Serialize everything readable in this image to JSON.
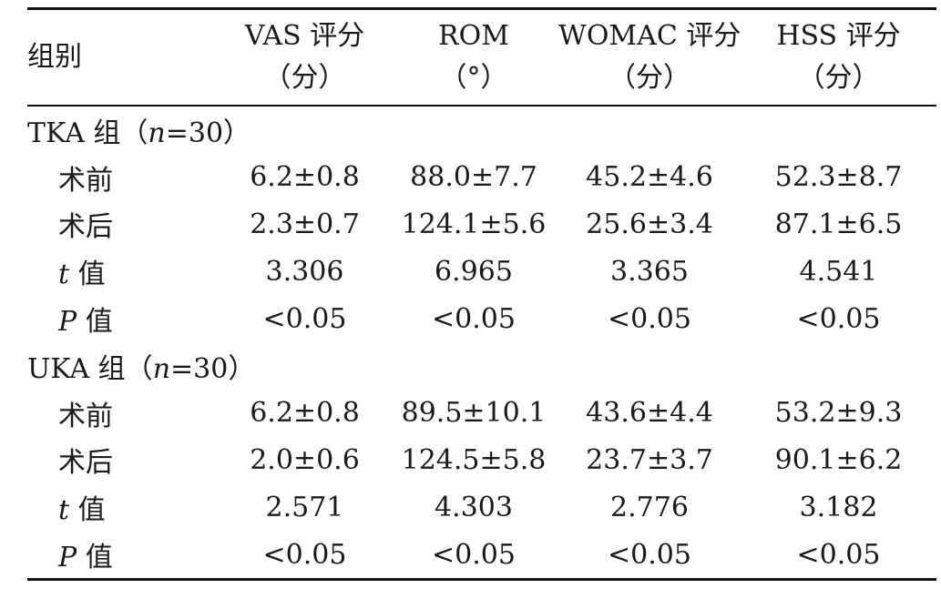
{
  "table": {
    "header": {
      "group_label": "组别",
      "columns": [
        {
          "line1": "VAS 评分",
          "line2": "（分）"
        },
        {
          "line1": "ROM",
          "line2": "（°）"
        },
        {
          "line1": "WOMAC 评分",
          "line2": "（分）"
        },
        {
          "line1": "HSS 评分",
          "line2": "（分）"
        }
      ]
    },
    "groups": [
      {
        "label_prefix": "TKA 组（",
        "label_n": "n",
        "label_suffix": "=30）",
        "rows": [
          {
            "label": "术前",
            "label_italic": "",
            "label_rest": "",
            "values": [
              "6.2±0.8",
              "88.0±7.7",
              "45.2±4.6",
              "52.3±8.7"
            ]
          },
          {
            "label": "术后",
            "label_italic": "",
            "label_rest": "",
            "values": [
              "2.3±0.7",
              "124.1±5.6",
              "25.6±3.4",
              "87.1±6.5"
            ]
          },
          {
            "label": "",
            "label_italic": "t",
            "label_rest": " 值",
            "values": [
              "3.306",
              "6.965",
              "3.365",
              "4.541"
            ]
          },
          {
            "label": "",
            "label_italic": "P",
            "label_rest": " 值",
            "values": [
              "<0.05",
              "<0.05",
              "<0.05",
              "<0.05"
            ]
          }
        ]
      },
      {
        "label_prefix": "UKA 组（",
        "label_n": "n",
        "label_suffix": "=30）",
        "rows": [
          {
            "label": "术前",
            "label_italic": "",
            "label_rest": "",
            "values": [
              "6.2±0.8",
              "89.5±10.1",
              "43.6±4.4",
              "53.2±9.3"
            ]
          },
          {
            "label": "术后",
            "label_italic": "",
            "label_rest": "",
            "values": [
              "2.0±0.6",
              "124.5±5.8",
              "23.7±3.7",
              "90.1±6.2"
            ]
          },
          {
            "label": "",
            "label_italic": "t",
            "label_rest": " 值",
            "values": [
              "2.571",
              "4.303",
              "2.776",
              "3.182"
            ]
          },
          {
            "label": "",
            "label_italic": "P",
            "label_rest": " 值",
            "values": [
              "<0.05",
              "<0.05",
              "<0.05",
              "<0.05"
            ]
          }
        ]
      }
    ]
  }
}
